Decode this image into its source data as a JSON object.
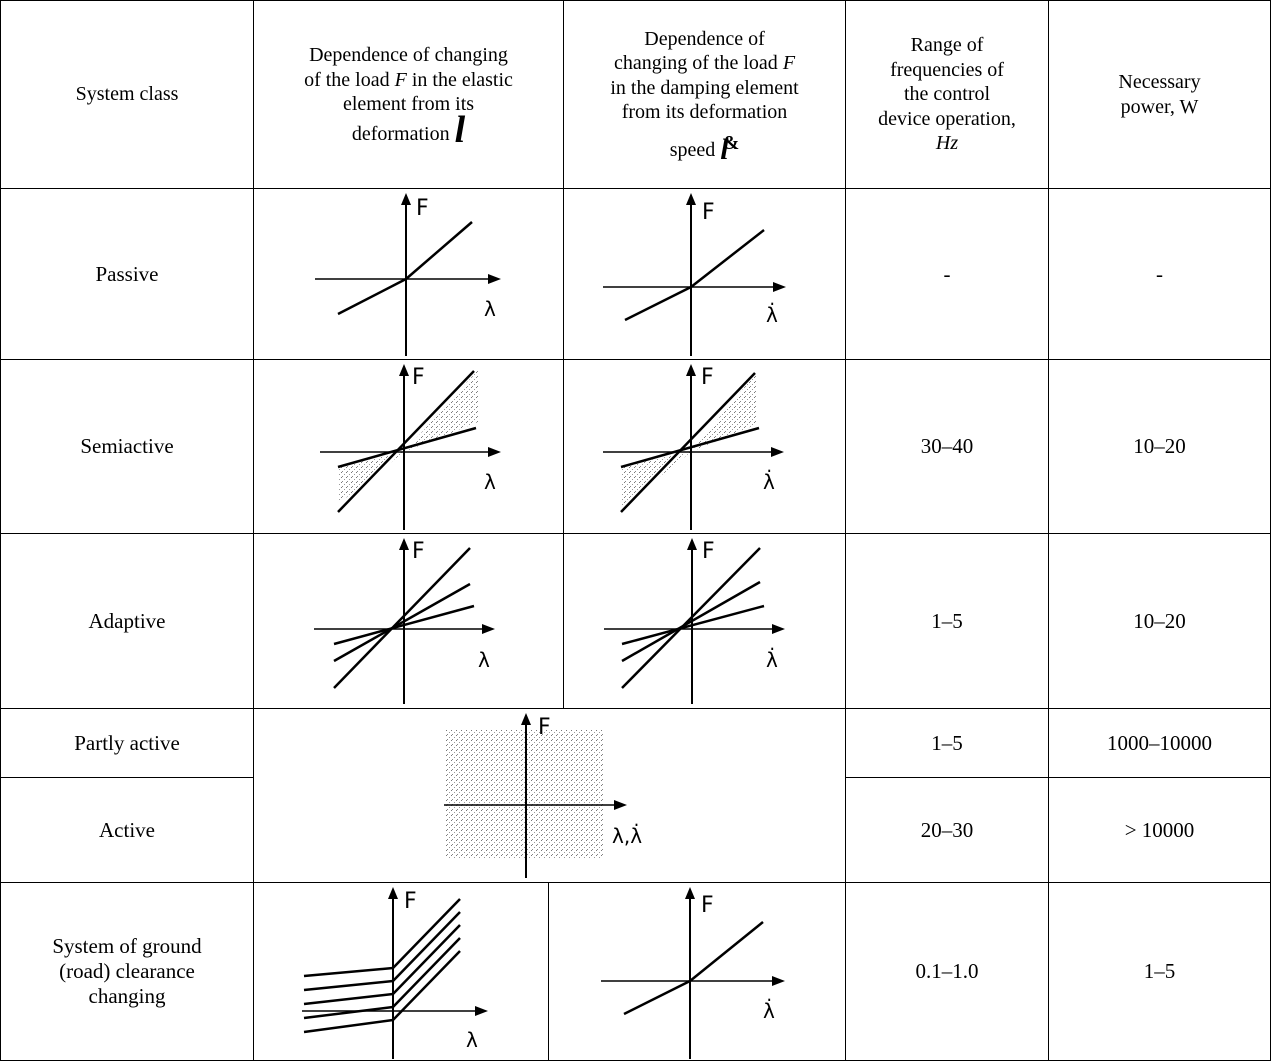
{
  "header": {
    "system_class": "System class",
    "elastic": [
      "Dependence of changing",
      "of the load",
      "F",
      "in the elastic",
      "element from its",
      "deformation",
      "l"
    ],
    "damping": [
      "Dependence of",
      "changing of the load",
      "F",
      "in the damping element",
      "from its deformation",
      "speed",
      "l",
      "&"
    ],
    "frequency": [
      "Range of",
      "frequencies of",
      "the control",
      "device operation,",
      "Hz"
    ],
    "power": [
      "Necessary",
      "power, W"
    ]
  },
  "rows": [
    {
      "system_class": "Passive",
      "frequency": "-",
      "power": "-"
    },
    {
      "system_class": "Semiactive",
      "frequency": "30–40",
      "power": "10–20"
    },
    {
      "system_class": "Adaptive",
      "frequency": "1–5",
      "power": "10–20"
    },
    {
      "system_class": "Partly active",
      "frequency": "1–5",
      "power": "1000–10000"
    },
    {
      "system_class": "Active",
      "frequency": "20–30",
      "power": "> 10000"
    },
    {
      "system_class": [
        "System of ground",
        "(road) clearance",
        "changing"
      ],
      "frequency": "0.1–1.0",
      "power": "1–5"
    }
  ],
  "graph_labels": {
    "force": "F",
    "deformation": "λ",
    "speed": "λ̇",
    "combined": "λ,λ̇"
  }
}
